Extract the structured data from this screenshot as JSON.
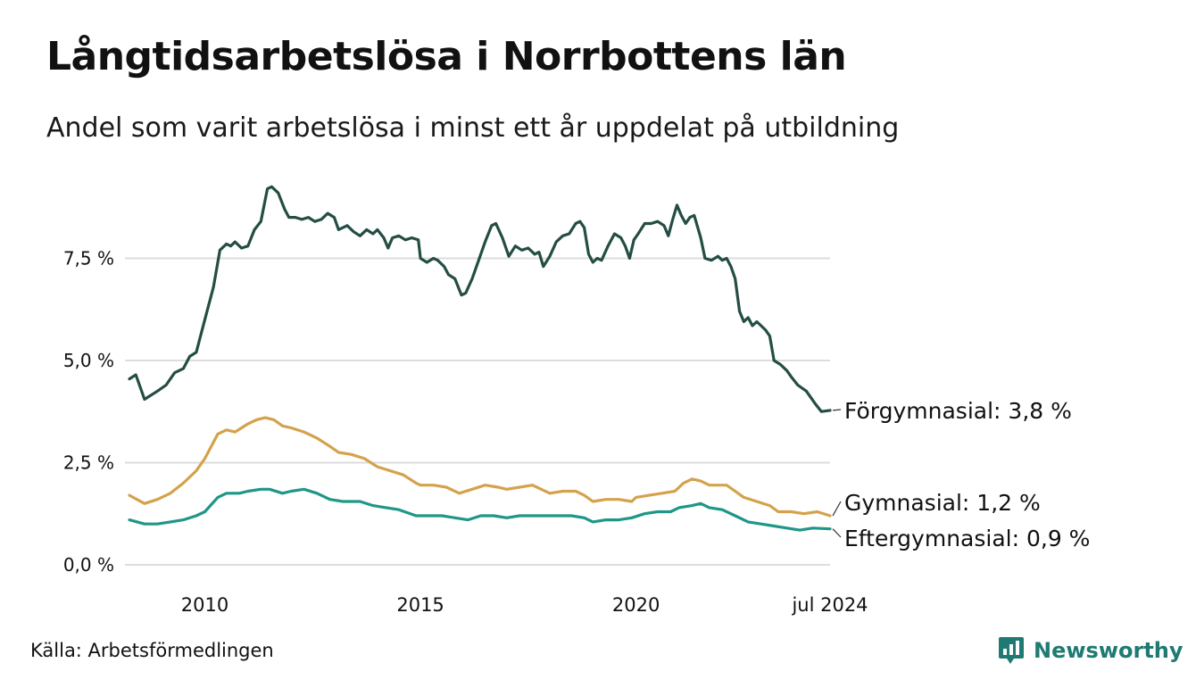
{
  "header": {
    "title": "Långtidsarbetslösa i Norrbottens län",
    "subtitle": "Andel som varit arbetslösa i minst ett år uppdelat på utbildning"
  },
  "footer": {
    "source": "Källa: Arbetsförmedlingen",
    "brand": "Newsworthy",
    "brand_icon": "bar-chart-bubble-icon"
  },
  "colors": {
    "forgymnasial": "#244d44",
    "gymnasial": "#d4a24c",
    "eftergymnasial": "#1f9688",
    "grid": "#dddddd",
    "brand": "#1f7a71"
  },
  "chart_data": {
    "type": "line",
    "title": "Långtidsarbetslösa i Norrbottens län",
    "subtitle": "Andel som varit arbetslösa i minst ett år uppdelat på utbildning",
    "xlabel": "",
    "ylabel": "",
    "x_unit": "year (decimal)",
    "xlim": [
      2008.25,
      2024.5
    ],
    "ylim": [
      0,
      9.3
    ],
    "y_ticks": [
      0,
      2.5,
      5.0,
      7.5
    ],
    "y_tick_labels": [
      "0,0 %",
      "2,5 %",
      "5,0 %",
      "7,5 %"
    ],
    "x_ticks": [
      2010,
      2015,
      2020,
      2024.5
    ],
    "x_tick_labels": [
      "2010",
      "2015",
      "2020",
      "jul 2024"
    ],
    "grid": true,
    "legend": "direct labels at line ends (right)",
    "series": [
      {
        "name": "Förgymnasial",
        "end_label": "Förgymnasial: 3,8 %",
        "color_key": "forgymnasial",
        "points": [
          [
            2008.25,
            4.55
          ],
          [
            2008.4,
            4.65
          ],
          [
            2008.6,
            4.05
          ],
          [
            2008.9,
            4.25
          ],
          [
            2009.1,
            4.4
          ],
          [
            2009.3,
            4.7
          ],
          [
            2009.5,
            4.8
          ],
          [
            2009.65,
            5.1
          ],
          [
            2009.8,
            5.2
          ],
          [
            2010.0,
            6.0
          ],
          [
            2010.2,
            6.8
          ],
          [
            2010.35,
            7.7
          ],
          [
            2010.5,
            7.85
          ],
          [
            2010.6,
            7.8
          ],
          [
            2010.7,
            7.9
          ],
          [
            2010.85,
            7.75
          ],
          [
            2011.0,
            7.8
          ],
          [
            2011.15,
            8.2
          ],
          [
            2011.3,
            8.4
          ],
          [
            2011.45,
            9.2
          ],
          [
            2011.55,
            9.25
          ],
          [
            2011.7,
            9.1
          ],
          [
            2011.85,
            8.7
          ],
          [
            2011.95,
            8.5
          ],
          [
            2012.1,
            8.5
          ],
          [
            2012.25,
            8.45
          ],
          [
            2012.4,
            8.5
          ],
          [
            2012.55,
            8.4
          ],
          [
            2012.7,
            8.45
          ],
          [
            2012.85,
            8.6
          ],
          [
            2013.0,
            8.5
          ],
          [
            2013.1,
            8.2
          ],
          [
            2013.3,
            8.3
          ],
          [
            2013.45,
            8.15
          ],
          [
            2013.6,
            8.05
          ],
          [
            2013.75,
            8.2
          ],
          [
            2013.9,
            8.1
          ],
          [
            2014.0,
            8.2
          ],
          [
            2014.15,
            8.0
          ],
          [
            2014.25,
            7.75
          ],
          [
            2014.35,
            8.0
          ],
          [
            2014.5,
            8.05
          ],
          [
            2014.65,
            7.95
          ],
          [
            2014.8,
            8.0
          ],
          [
            2014.95,
            7.95
          ],
          [
            2015.0,
            7.5
          ],
          [
            2015.15,
            7.4
          ],
          [
            2015.3,
            7.5
          ],
          [
            2015.4,
            7.45
          ],
          [
            2015.55,
            7.3
          ],
          [
            2015.65,
            7.1
          ],
          [
            2015.8,
            7.0
          ],
          [
            2015.95,
            6.6
          ],
          [
            2016.05,
            6.65
          ],
          [
            2016.2,
            7.0
          ],
          [
            2016.35,
            7.45
          ],
          [
            2016.5,
            7.9
          ],
          [
            2016.65,
            8.3
          ],
          [
            2016.75,
            8.35
          ],
          [
            2016.9,
            8.0
          ],
          [
            2017.05,
            7.55
          ],
          [
            2017.2,
            7.8
          ],
          [
            2017.35,
            7.7
          ],
          [
            2017.5,
            7.75
          ],
          [
            2017.65,
            7.6
          ],
          [
            2017.75,
            7.65
          ],
          [
            2017.85,
            7.3
          ],
          [
            2018.0,
            7.55
          ],
          [
            2018.15,
            7.9
          ],
          [
            2018.3,
            8.05
          ],
          [
            2018.45,
            8.1
          ],
          [
            2018.6,
            8.35
          ],
          [
            2018.7,
            8.4
          ],
          [
            2018.8,
            8.25
          ],
          [
            2018.9,
            7.6
          ],
          [
            2019.0,
            7.4
          ],
          [
            2019.1,
            7.5
          ],
          [
            2019.2,
            7.45
          ],
          [
            2019.35,
            7.8
          ],
          [
            2019.5,
            8.1
          ],
          [
            2019.65,
            8.0
          ],
          [
            2019.75,
            7.8
          ],
          [
            2019.85,
            7.5
          ],
          [
            2019.95,
            7.95
          ],
          [
            2020.05,
            8.1
          ],
          [
            2020.2,
            8.35
          ],
          [
            2020.35,
            8.35
          ],
          [
            2020.5,
            8.4
          ],
          [
            2020.65,
            8.3
          ],
          [
            2020.75,
            8.05
          ],
          [
            2020.85,
            8.45
          ],
          [
            2020.95,
            8.8
          ],
          [
            2021.05,
            8.55
          ],
          [
            2021.15,
            8.35
          ],
          [
            2021.25,
            8.5
          ],
          [
            2021.35,
            8.55
          ],
          [
            2021.5,
            8.0
          ],
          [
            2021.6,
            7.5
          ],
          [
            2021.75,
            7.45
          ],
          [
            2021.9,
            7.55
          ],
          [
            2022.0,
            7.45
          ],
          [
            2022.1,
            7.5
          ],
          [
            2022.2,
            7.3
          ],
          [
            2022.3,
            7.0
          ],
          [
            2022.4,
            6.2
          ],
          [
            2022.5,
            5.95
          ],
          [
            2022.6,
            6.05
          ],
          [
            2022.7,
            5.85
          ],
          [
            2022.8,
            5.95
          ],
          [
            2022.9,
            5.85
          ],
          [
            2023.0,
            5.75
          ],
          [
            2023.1,
            5.6
          ],
          [
            2023.2,
            5.0
          ],
          [
            2023.35,
            4.9
          ],
          [
            2023.5,
            4.75
          ],
          [
            2023.6,
            4.6
          ],
          [
            2023.75,
            4.4
          ],
          [
            2023.95,
            4.25
          ],
          [
            2024.15,
            3.95
          ],
          [
            2024.3,
            3.75
          ],
          [
            2024.5,
            3.78
          ]
        ]
      },
      {
        "name": "Gymnasial",
        "end_label": "Gymnasial: 1,2 %",
        "color_key": "gymnasial",
        "points": [
          [
            2008.25,
            1.7
          ],
          [
            2008.6,
            1.5
          ],
          [
            2008.9,
            1.6
          ],
          [
            2009.2,
            1.75
          ],
          [
            2009.5,
            2.0
          ],
          [
            2009.8,
            2.3
          ],
          [
            2010.0,
            2.6
          ],
          [
            2010.3,
            3.2
          ],
          [
            2010.5,
            3.3
          ],
          [
            2010.7,
            3.25
          ],
          [
            2011.0,
            3.45
          ],
          [
            2011.2,
            3.55
          ],
          [
            2011.4,
            3.6
          ],
          [
            2011.6,
            3.55
          ],
          [
            2011.8,
            3.4
          ],
          [
            2012.0,
            3.35
          ],
          [
            2012.3,
            3.25
          ],
          [
            2012.6,
            3.1
          ],
          [
            2012.9,
            2.9
          ],
          [
            2013.1,
            2.75
          ],
          [
            2013.4,
            2.7
          ],
          [
            2013.7,
            2.6
          ],
          [
            2014.0,
            2.4
          ],
          [
            2014.3,
            2.3
          ],
          [
            2014.6,
            2.2
          ],
          [
            2014.9,
            2.0
          ],
          [
            2015.0,
            1.95
          ],
          [
            2015.3,
            1.95
          ],
          [
            2015.6,
            1.9
          ],
          [
            2015.9,
            1.75
          ],
          [
            2016.2,
            1.85
          ],
          [
            2016.5,
            1.95
          ],
          [
            2016.8,
            1.9
          ],
          [
            2017.0,
            1.85
          ],
          [
            2017.3,
            1.9
          ],
          [
            2017.6,
            1.95
          ],
          [
            2017.8,
            1.85
          ],
          [
            2018.0,
            1.75
          ],
          [
            2018.3,
            1.8
          ],
          [
            2018.6,
            1.8
          ],
          [
            2018.8,
            1.7
          ],
          [
            2019.0,
            1.55
          ],
          [
            2019.3,
            1.6
          ],
          [
            2019.6,
            1.6
          ],
          [
            2019.9,
            1.55
          ],
          [
            2020.0,
            1.65
          ],
          [
            2020.3,
            1.7
          ],
          [
            2020.6,
            1.75
          ],
          [
            2020.9,
            1.8
          ],
          [
            2021.1,
            2.0
          ],
          [
            2021.3,
            2.1
          ],
          [
            2021.5,
            2.05
          ],
          [
            2021.7,
            1.95
          ],
          [
            2021.9,
            1.95
          ],
          [
            2022.1,
            1.95
          ],
          [
            2022.3,
            1.8
          ],
          [
            2022.5,
            1.65
          ],
          [
            2022.8,
            1.55
          ],
          [
            2023.1,
            1.45
          ],
          [
            2023.3,
            1.3
          ],
          [
            2023.6,
            1.3
          ],
          [
            2023.9,
            1.25
          ],
          [
            2024.2,
            1.3
          ],
          [
            2024.5,
            1.2
          ]
        ]
      },
      {
        "name": "Eftergymnasial",
        "end_label": "Eftergymnasial: 0,9 %",
        "color_key": "eftergymnasial",
        "points": [
          [
            2008.25,
            1.1
          ],
          [
            2008.6,
            1.0
          ],
          [
            2008.9,
            1.0
          ],
          [
            2009.2,
            1.05
          ],
          [
            2009.5,
            1.1
          ],
          [
            2009.8,
            1.2
          ],
          [
            2010.0,
            1.3
          ],
          [
            2010.3,
            1.65
          ],
          [
            2010.5,
            1.75
          ],
          [
            2010.8,
            1.75
          ],
          [
            2011.0,
            1.8
          ],
          [
            2011.3,
            1.85
          ],
          [
            2011.5,
            1.85
          ],
          [
            2011.8,
            1.75
          ],
          [
            2012.0,
            1.8
          ],
          [
            2012.3,
            1.85
          ],
          [
            2012.6,
            1.75
          ],
          [
            2012.9,
            1.6
          ],
          [
            2013.2,
            1.55
          ],
          [
            2013.6,
            1.55
          ],
          [
            2013.9,
            1.45
          ],
          [
            2014.2,
            1.4
          ],
          [
            2014.5,
            1.35
          ],
          [
            2014.9,
            1.2
          ],
          [
            2015.2,
            1.2
          ],
          [
            2015.5,
            1.2
          ],
          [
            2015.8,
            1.15
          ],
          [
            2016.1,
            1.1
          ],
          [
            2016.4,
            1.2
          ],
          [
            2016.7,
            1.2
          ],
          [
            2017.0,
            1.15
          ],
          [
            2017.3,
            1.2
          ],
          [
            2017.6,
            1.2
          ],
          [
            2017.9,
            1.2
          ],
          [
            2018.2,
            1.2
          ],
          [
            2018.5,
            1.2
          ],
          [
            2018.8,
            1.15
          ],
          [
            2019.0,
            1.05
          ],
          [
            2019.3,
            1.1
          ],
          [
            2019.6,
            1.1
          ],
          [
            2019.9,
            1.15
          ],
          [
            2020.2,
            1.25
          ],
          [
            2020.5,
            1.3
          ],
          [
            2020.8,
            1.3
          ],
          [
            2021.0,
            1.4
          ],
          [
            2021.3,
            1.45
          ],
          [
            2021.5,
            1.5
          ],
          [
            2021.7,
            1.4
          ],
          [
            2022.0,
            1.35
          ],
          [
            2022.3,
            1.2
          ],
          [
            2022.6,
            1.05
          ],
          [
            2022.9,
            1.0
          ],
          [
            2023.2,
            0.95
          ],
          [
            2023.5,
            0.9
          ],
          [
            2023.8,
            0.85
          ],
          [
            2024.1,
            0.9
          ],
          [
            2024.5,
            0.88
          ]
        ]
      }
    ]
  }
}
